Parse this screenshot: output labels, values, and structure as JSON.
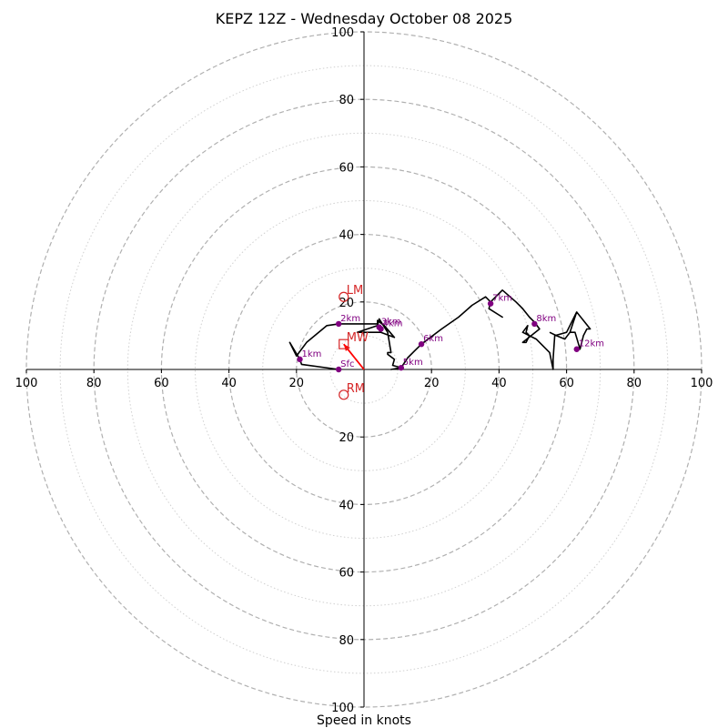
{
  "chart_data": {
    "type": "hodograph",
    "title": "KEPZ 12Z - Wednesday October 08 2025",
    "xlabel": "Speed in knots",
    "ylabel": "",
    "xlim": [
      -100,
      100
    ],
    "ylim": [
      -100,
      100
    ],
    "ring_major": [
      20,
      40,
      60,
      80,
      100
    ],
    "ring_minor": [
      10,
      30,
      50,
      70,
      90
    ],
    "x_tick_labels": [
      "100",
      "80",
      "60",
      "40",
      "20",
      "20",
      "40",
      "60",
      "80",
      "100"
    ],
    "y_tick_labels": [
      "100",
      "80",
      "60",
      "40",
      "20",
      "20",
      "40",
      "60",
      "80",
      "100"
    ],
    "x_tick_values": [
      -100,
      -80,
      -60,
      -40,
      -20,
      20,
      40,
      60,
      80,
      100
    ],
    "y_tick_values": [
      100,
      80,
      60,
      40,
      20,
      -20,
      -40,
      -60,
      -80,
      -100
    ],
    "trace": [
      [
        -7.5,
        0
      ],
      [
        -18.5,
        1.5
      ],
      [
        -19,
        3
      ],
      [
        -22,
        8
      ],
      [
        -20,
        4
      ],
      [
        -17,
        8
      ],
      [
        -11,
        13
      ],
      [
        -7.5,
        13.5
      ],
      [
        4,
        13.5
      ],
      [
        4,
        14.5
      ],
      [
        6,
        13
      ],
      [
        9,
        9.5
      ],
      [
        5,
        11
      ],
      [
        -2,
        11
      ],
      [
        4,
        13
      ],
      [
        4.5,
        15
      ],
      [
        7,
        11
      ],
      [
        8,
        5
      ],
      [
        7,
        5
      ],
      [
        7,
        4.5
      ],
      [
        9,
        3
      ],
      [
        8.5,
        1.2
      ],
      [
        11,
        0.5
      ],
      [
        8,
        0
      ],
      [
        11,
        0.5
      ],
      [
        13,
        3.5
      ],
      [
        15,
        5.5
      ],
      [
        17,
        7.5
      ],
      [
        23,
        12
      ],
      [
        28,
        15.5
      ],
      [
        32,
        19
      ],
      [
        36,
        21.5
      ],
      [
        37.5,
        20
      ],
      [
        37,
        18
      ],
      [
        41,
        15.5
      ],
      [
        37,
        18
      ],
      [
        37.5,
        20
      ],
      [
        41,
        23.5
      ],
      [
        45,
        20
      ],
      [
        47,
        18
      ],
      [
        49,
        15.5
      ],
      [
        50.5,
        14
      ],
      [
        52,
        12
      ],
      [
        47,
        8
      ],
      [
        48,
        8
      ],
      [
        49,
        10
      ],
      [
        48,
        11
      ],
      [
        48.5,
        13
      ],
      [
        47,
        11
      ],
      [
        51,
        9
      ],
      [
        55,
        5
      ],
      [
        56,
        0
      ],
      [
        56,
        0
      ],
      [
        56,
        3
      ],
      [
        56.5,
        10
      ],
      [
        60,
        11
      ],
      [
        63,
        17
      ],
      [
        67,
        12
      ],
      [
        66,
        12
      ],
      [
        65,
        10
      ],
      [
        64,
        6
      ],
      [
        62.5,
        11
      ],
      [
        61,
        11
      ],
      [
        63,
        17
      ],
      [
        61,
        11
      ],
      [
        59.5,
        9
      ],
      [
        57,
        10
      ],
      [
        55,
        11
      ]
    ],
    "height_markers": [
      {
        "label": "Sfc",
        "u": -7.5,
        "v": 0
      },
      {
        "label": "1km",
        "u": -19,
        "v": 3
      },
      {
        "label": "2km",
        "u": -7.5,
        "v": 13.5
      },
      {
        "label": "3km",
        "u": 4.5,
        "v": 12.5
      },
      {
        "label": "4km",
        "u": 5,
        "v": 12
      },
      {
        "label": "5km",
        "u": 11,
        "v": 0.5
      },
      {
        "label": "6km",
        "u": 17,
        "v": 7.5
      },
      {
        "label": "7km",
        "u": 37.5,
        "v": 19.5
      },
      {
        "label": "8km",
        "u": 50.5,
        "v": 13.5
      },
      {
        "label": "12km",
        "u": 63,
        "v": 6
      }
    ],
    "storm_motion": [
      {
        "label": "LM",
        "u": -6,
        "v": 21.5,
        "marker": "circle"
      },
      {
        "label": "MW",
        "u": -6,
        "v": 7.5,
        "marker": "square"
      },
      {
        "label": "RM",
        "u": -6,
        "v": -7.5,
        "marker": "circle"
      }
    ],
    "shear_vector": {
      "from_u": 0,
      "from_v": 0,
      "to_u": -6,
      "to_v": 7.5
    },
    "grid": true,
    "colors": {
      "trace": "#000000",
      "markers": "#800080",
      "storm_motion": "#d62728",
      "shear_vector": "#ff0000",
      "ring_major": "#b0b0b0",
      "ring_minor": "#d0d0d0",
      "axis": "#000000"
    }
  }
}
